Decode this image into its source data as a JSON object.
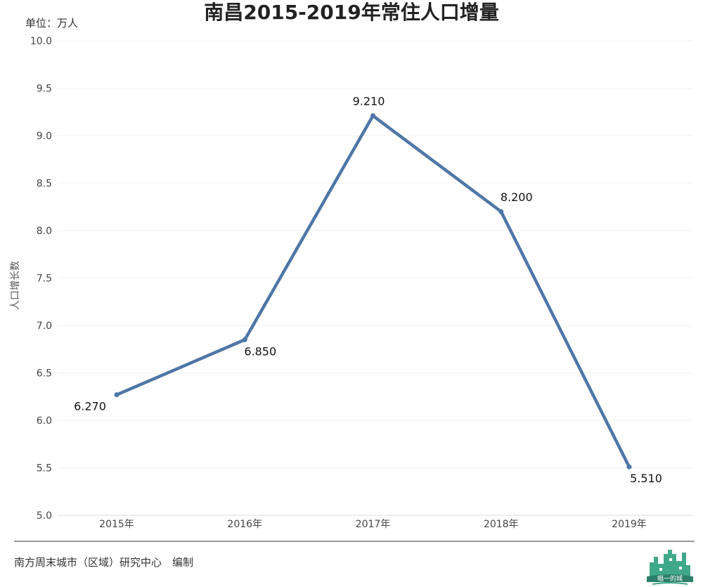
{
  "chart_data": {
    "type": "line",
    "title": "南昌2015-2019年常住人口增量",
    "unit_label": "单位：万人",
    "ylabel": "人口增长数",
    "xlabel": "",
    "categories": [
      "2015年",
      "2016年",
      "2017年",
      "2018年",
      "2019年"
    ],
    "values": [
      6.27,
      6.85,
      9.21,
      8.2,
      5.51
    ],
    "data_labels": [
      "6.270",
      "6.850",
      "9.210",
      "8.200",
      "5.510"
    ],
    "ylim": [
      5.0,
      10.0
    ],
    "yticks": [
      "5.0",
      "5.5",
      "6.0",
      "6.5",
      "7.0",
      "7.5",
      "8.0",
      "8.5",
      "9.0",
      "9.5",
      "10.0"
    ],
    "grid": true,
    "line_color": "#4e77a6"
  },
  "footer": {
    "source": "南方周末城市（区域）研究中心　编制",
    "logo_text": "唱一的城"
  }
}
